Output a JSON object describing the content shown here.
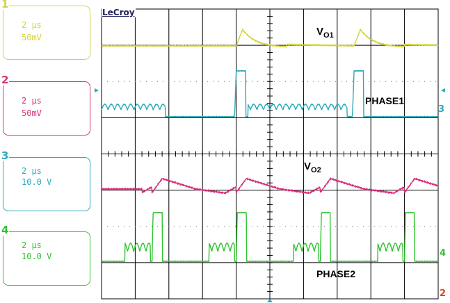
{
  "brand": "LeCroy",
  "channels": [
    {
      "num": "1",
      "timebase": "2 µs",
      "scale": "50mV",
      "color": "#d4d43a"
    },
    {
      "num": "2",
      "timebase": "2 µs",
      "scale": "50mV",
      "color": "#d9307a"
    },
    {
      "num": "3",
      "timebase": "2 µs",
      "scale": "10.0 V",
      "color": "#2aaab9"
    },
    {
      "num": "4",
      "timebase": "2 µs",
      "scale": "10.0 V",
      "color": "#2fc42f"
    }
  ],
  "chart_data": {
    "type": "line",
    "grid": true,
    "divisions": {
      "horizontal": 10,
      "vertical": 8
    },
    "annotations": [
      {
        "text_main": "V",
        "text_sub": "O1"
      },
      {
        "text_main": "PHASE1",
        "text_sub": ""
      },
      {
        "text_main": "V",
        "text_sub": "O2"
      },
      {
        "text_main": "PHASE2",
        "text_sub": ""
      }
    ],
    "series": [
      {
        "name": "VO1",
        "channel": 1,
        "color": "#d4d43a",
        "events_div": [
          4.0,
          7.5
        ]
      },
      {
        "name": "PHASE1",
        "channel": 3,
        "color": "#2aaab9",
        "events_div": [
          4.0,
          7.5
        ]
      },
      {
        "name": "VO2",
        "channel": 2,
        "color": "#d9307a",
        "events_div": [
          1.5,
          4.0,
          6.5,
          9.0
        ]
      },
      {
        "name": "PHASE2",
        "channel": 4,
        "color": "#2fc42f",
        "events_div": [
          1.5,
          4.0,
          6.5,
          9.0
        ]
      }
    ],
    "markers": {
      "right_trace": [
        "3",
        "4"
      ],
      "corner": "2"
    }
  }
}
